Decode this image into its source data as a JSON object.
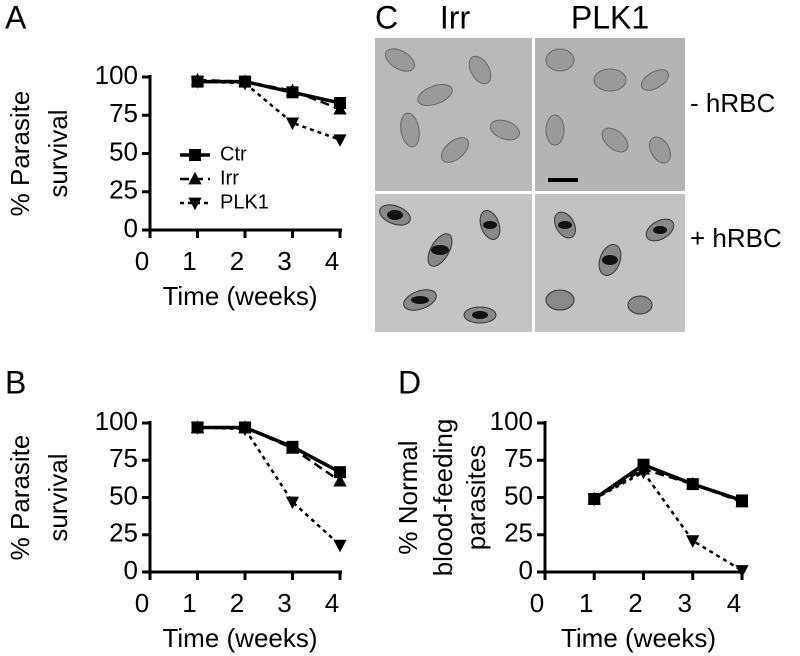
{
  "chart_data": [
    {
      "type": "line",
      "panel": "A",
      "ylabel": [
        "% Parasite",
        "survival"
      ],
      "xlabel": "Time (weeks)",
      "x": [
        1,
        2,
        3,
        4
      ],
      "xlim": [
        0,
        4
      ],
      "xticks": [
        0,
        1,
        2,
        3,
        4
      ],
      "ylim": [
        0,
        100
      ],
      "yticks": [
        0,
        25,
        50,
        75,
        100
      ],
      "legend": "center-left",
      "series": [
        {
          "name": "Ctr",
          "color": "#000000",
          "marker": "square",
          "dash": "solid",
          "values": [
            97,
            97,
            90,
            83
          ]
        },
        {
          "name": "Irr",
          "color": "#000000",
          "marker": "triangle-up",
          "dash": "dashed",
          "values": [
            98,
            97,
            91,
            79
          ]
        },
        {
          "name": "PLK1",
          "color": "#000000",
          "marker": "triangle-down",
          "dash": "dotted",
          "values": [
            97,
            96,
            70,
            59
          ]
        }
      ]
    },
    {
      "type": "line",
      "panel": "B",
      "ylabel": [
        "% Parasite",
        "survival"
      ],
      "xlabel": "Time (weeks)",
      "x": [
        1,
        2,
        3,
        4
      ],
      "xlim": [
        0,
        4
      ],
      "xticks": [
        0,
        1,
        2,
        3,
        4
      ],
      "ylim": [
        0,
        100
      ],
      "yticks": [
        0,
        25,
        50,
        75,
        100
      ],
      "series": [
        {
          "color": "#000000",
          "marker": "square",
          "dash": "solid",
          "values": [
            97,
            97,
            84,
            67
          ]
        },
        {
          "color": "#000000",
          "marker": "triangle-up",
          "dash": "dashed",
          "values": [
            97,
            97,
            83,
            61
          ]
        },
        {
          "color": "#000000",
          "marker": "triangle-down",
          "dash": "dotted",
          "values": [
            97,
            96,
            47,
            18
          ]
        }
      ]
    },
    {
      "type": "line",
      "panel": "D",
      "ylabel": [
        "% Normal",
        "blood-feeding",
        "parasites"
      ],
      "xlabel": "Time (weeks)",
      "x": [
        1,
        2,
        3,
        4
      ],
      "xlim": [
        0,
        4
      ],
      "xticks": [
        0,
        1,
        2,
        3,
        4
      ],
      "ylim": [
        0,
        100
      ],
      "yticks": [
        0,
        25,
        50,
        75,
        100
      ],
      "series": [
        {
          "color": "#000000",
          "marker": "square",
          "dash": "solid",
          "values": [
            49,
            72,
            59,
            48
          ]
        },
        {
          "color": "#000000",
          "marker": "triangle-up",
          "dash": "dashed",
          "values": [
            49,
            69,
            59,
            47
          ]
        },
        {
          "color": "#000000",
          "marker": "triangle-down",
          "dash": "dotted",
          "values": [
            49,
            67,
            21,
            1
          ]
        }
      ]
    }
  ],
  "panel_c": {
    "panel": "C",
    "columns": [
      "Irr",
      "PLK1"
    ],
    "rows": [
      "- hRBC",
      "+ hRBC"
    ]
  }
}
